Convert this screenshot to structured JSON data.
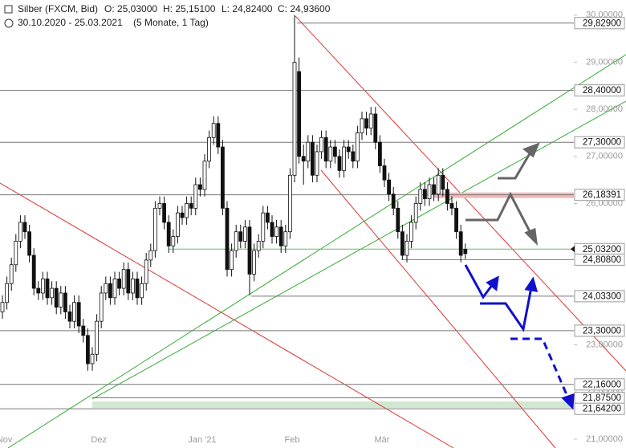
{
  "chart_data": {
    "type": "candlestick",
    "title": "Silber (FXCM, Bid)",
    "ohlc_labels": [
      "O: 25,03000",
      "H: 25,15100",
      "L: 24,82400",
      "C: 24,93600"
    ],
    "period": "30.10.2020 - 25.03.2021",
    "period_note": "(5 Monate, 1 Tag)",
    "categories": [
      null,
      "Nov",
      null,
      null,
      null,
      null,
      null,
      null,
      null,
      null,
      null,
      null,
      null,
      null,
      null,
      null,
      null,
      null,
      null,
      null,
      null,
      null,
      "Dez",
      null,
      null,
      null,
      null,
      null,
      null,
      null,
      null,
      null,
      null,
      null,
      null,
      null,
      null,
      null,
      null,
      null,
      null,
      null,
      null,
      null,
      null,
      "Jan '21",
      null,
      null,
      null,
      null,
      null,
      null,
      null,
      null,
      null,
      null,
      null,
      null,
      null,
      null,
      null,
      null,
      null,
      null,
      null,
      "Feb",
      null,
      null,
      null,
      null,
      null,
      null,
      null,
      null,
      null,
      null,
      null,
      null,
      null,
      null,
      null,
      null,
      null,
      null,
      null,
      "Mär",
      null,
      null,
      null,
      null,
      null,
      null,
      null,
      null,
      null,
      null,
      null,
      null,
      null,
      null,
      null,
      null,
      null,
      null
    ],
    "open": [
      23.7,
      23.9,
      24.3,
      24.7,
      25.2,
      25.6,
      25.4,
      24.9,
      24.2,
      24.1,
      24.4,
      24.0,
      24.2,
      23.8,
      24.1,
      23.7,
      23.5,
      23.9,
      23.4,
      23.2,
      22.6,
      22.8,
      23.5,
      24.1,
      24.3,
      24.0,
      24.4,
      24.2,
      24.6,
      24.1,
      24.4,
      24.0,
      24.3,
      24.8,
      25.0,
      25.9,
      26.0,
      25.6,
      25.1,
      25.3,
      25.8,
      25.7,
      26.0,
      25.9,
      26.4,
      26.3,
      26.9,
      27.4,
      27.7,
      27.2,
      25.9,
      24.6,
      25.0,
      25.4,
      25.2,
      25.5,
      24.5,
      25.0,
      25.2,
      25.8,
      25.6,
      25.3,
      25.5,
      25.1,
      25.4,
      26.6,
      28.8,
      27.0,
      26.9,
      27.3,
      26.6,
      27.1,
      27.4,
      26.9,
      27.2,
      27.0,
      26.7,
      27.2,
      27.1,
      26.9,
      27.5,
      27.8,
      27.6,
      27.9,
      27.3,
      26.8,
      26.5,
      26.2,
      25.9,
      25.4,
      24.9,
      25.2,
      25.6,
      26.0,
      26.3,
      26.1,
      26.4,
      26.2,
      26.6,
      26.3,
      26.0,
      25.9,
      25.4,
      25.03
    ],
    "high": [
      24.05,
      24.45,
      24.85,
      25.35,
      25.75,
      25.75,
      25.55,
      25.05,
      24.35,
      24.55,
      24.55,
      24.35,
      24.35,
      24.25,
      24.25,
      23.85,
      24.05,
      24.05,
      23.55,
      23.35,
      22.95,
      23.65,
      24.25,
      24.45,
      24.45,
      24.55,
      24.55,
      24.75,
      24.75,
      24.55,
      24.55,
      24.45,
      24.95,
      25.15,
      26.05,
      26.15,
      26.15,
      25.75,
      25.45,
      25.95,
      25.95,
      26.15,
      26.15,
      26.55,
      26.55,
      27.05,
      27.55,
      27.85,
      27.85,
      27.35,
      26.05,
      25.15,
      25.55,
      25.55,
      25.65,
      25.65,
      25.15,
      25.35,
      25.95,
      25.95,
      25.75,
      25.65,
      25.65,
      25.55,
      26.75,
      30.0,
      29.1,
      27.25,
      27.45,
      27.45,
      27.25,
      27.55,
      27.55,
      27.35,
      27.35,
      27.15,
      27.35,
      27.35,
      27.25,
      27.65,
      27.95,
      27.95,
      28.05,
      28.05,
      27.45,
      26.95,
      26.65,
      26.35,
      26.05,
      25.55,
      25.35,
      25.75,
      26.15,
      26.45,
      26.45,
      26.55,
      26.55,
      26.75,
      26.75,
      26.45,
      26.15,
      26.05,
      25.55,
      25.151
    ],
    "low": [
      23.55,
      23.75,
      24.15,
      24.55,
      25.05,
      25.25,
      24.75,
      24.05,
      23.95,
      23.95,
      23.85,
      23.85,
      23.65,
      23.65,
      23.55,
      23.35,
      23.35,
      23.25,
      23.05,
      22.45,
      22.45,
      22.65,
      23.35,
      23.95,
      23.85,
      23.85,
      24.05,
      24.05,
      23.95,
      23.95,
      23.85,
      23.85,
      24.15,
      24.65,
      24.85,
      25.75,
      25.45,
      24.95,
      24.95,
      25.15,
      25.55,
      25.55,
      25.75,
      25.75,
      26.15,
      26.15,
      26.75,
      27.25,
      27.05,
      25.75,
      24.45,
      24.45,
      24.85,
      25.05,
      25.05,
      24.05,
      24.35,
      24.85,
      25.05,
      25.45,
      25.15,
      25.15,
      24.95,
      24.95,
      25.25,
      26.45,
      26.85,
      26.4,
      26.75,
      26.45,
      26.45,
      26.95,
      26.75,
      26.75,
      26.85,
      26.55,
      26.55,
      26.95,
      26.75,
      26.75,
      27.35,
      27.45,
      27.45,
      27.15,
      26.65,
      26.35,
      26.05,
      25.75,
      25.25,
      24.81,
      24.75,
      25.05,
      25.45,
      25.85,
      25.95,
      25.95,
      26.05,
      26.05,
      26.15,
      25.85,
      25.75,
      25.25,
      24.75,
      24.824
    ],
    "close": [
      23.9,
      24.3,
      24.7,
      25.2,
      25.6,
      25.4,
      24.9,
      24.2,
      24.1,
      24.4,
      24.0,
      24.2,
      23.8,
      24.1,
      23.7,
      23.5,
      23.9,
      23.4,
      23.2,
      22.6,
      22.8,
      23.5,
      24.1,
      24.3,
      24.0,
      24.4,
      24.2,
      24.6,
      24.1,
      24.4,
      24.0,
      24.3,
      24.8,
      25.0,
      25.9,
      26.0,
      25.6,
      25.1,
      25.3,
      25.8,
      25.7,
      26.0,
      25.9,
      26.4,
      26.3,
      26.9,
      27.4,
      27.7,
      27.2,
      25.9,
      24.6,
      25.0,
      25.4,
      25.2,
      25.5,
      24.5,
      25.0,
      25.2,
      25.8,
      25.6,
      25.3,
      25.5,
      25.1,
      25.4,
      26.6,
      29.0,
      27.0,
      26.9,
      27.3,
      26.6,
      27.1,
      27.4,
      26.9,
      27.2,
      27.0,
      26.7,
      27.2,
      27.1,
      26.9,
      27.5,
      27.8,
      27.6,
      27.9,
      27.3,
      26.8,
      26.5,
      26.2,
      25.9,
      25.4,
      24.9,
      25.2,
      25.6,
      26.0,
      26.3,
      26.1,
      26.4,
      26.2,
      26.6,
      26.3,
      26.0,
      25.9,
      25.4,
      24.9,
      24.936
    ],
    "up_color": "#ffffff",
    "down_color": "#111111",
    "ylim": [
      20.81,
      30.32
    ],
    "yticks": [
      {
        "value": 21,
        "label": "21,00000"
      },
      {
        "value": 22,
        "label": "22,00000"
      },
      {
        "value": 23,
        "label": "23,00000"
      },
      {
        "value": 24,
        "label": "24,00000"
      },
      {
        "value": 25,
        "label": "25,00000"
      },
      {
        "value": 26,
        "label": "26,00000"
      },
      {
        "value": 27,
        "label": "27,00000"
      },
      {
        "value": 28,
        "label": "28,00000"
      },
      {
        "value": 29,
        "label": "29,00000"
      },
      {
        "value": 30,
        "label": "30,00000"
      }
    ],
    "levels": [
      {
        "value": 29.829,
        "label": "29,82900"
      },
      {
        "value": 28.4,
        "label": "28,40000"
      },
      {
        "value": 27.3,
        "label": "27,30000"
      },
      {
        "value": 26.18391,
        "label": "26,18391"
      },
      {
        "value": 25.032,
        "label": "25,03200"
      },
      {
        "value": 24.808,
        "label": "24,80800"
      },
      {
        "value": 24.033,
        "label": "24,03300"
      },
      {
        "value": 23.3,
        "label": "23,30000"
      },
      {
        "value": 22.16,
        "label": "22,16000"
      },
      {
        "value": 21.875,
        "label": "21,87500"
      },
      {
        "value": 21.642,
        "label": "21,64200"
      }
    ]
  }
}
